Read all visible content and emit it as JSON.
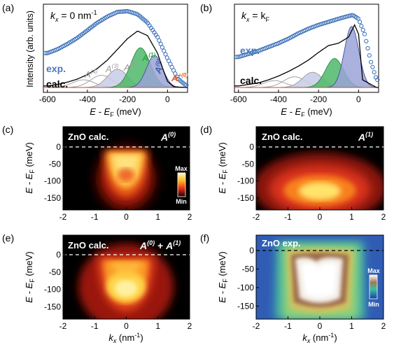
{
  "panels": {
    "a": {
      "label": "(a)",
      "kx_label_prefix": "k",
      "kx_label_sub": "x",
      "kx_label_suffix": " = 0 nm",
      "kx_label_sup": "-1",
      "exp_label": "exp.",
      "calc_label": "calc.",
      "components": [
        {
          "name": "A(4)",
          "base": "A",
          "sup": "(4)"
        },
        {
          "name": "A(3)",
          "base": "A",
          "sup": "(3)"
        },
        {
          "name": "A(2)",
          "base": "A",
          "sup": "(2)"
        },
        {
          "name": "A(1)",
          "base": "A",
          "sup": "(1)"
        },
        {
          "name": "A(0)",
          "base": "A",
          "sup": "(0)"
        },
        {
          "name": "A+(0)",
          "base": "A",
          "sup": "+(0)"
        }
      ]
    },
    "b": {
      "label": "(b)",
      "kx_label_prefix": "k",
      "kx_label_sub": "x",
      "kx_label_mid": " = k",
      "kx_label_sub2": "F",
      "exp_label": "exp.",
      "calc_label": "calc."
    },
    "c": {
      "label": "(c)",
      "title": "ZnO calc.",
      "component": {
        "base": "A",
        "sup": "(0)"
      },
      "colorbar_max": "Max",
      "colorbar_min": "Min"
    },
    "d": {
      "label": "(d)",
      "title": "ZnO calc.",
      "component": {
        "base": "A",
        "sup": "(1)"
      }
    },
    "e": {
      "label": "(e)",
      "title": "ZnO calc.",
      "component": {
        "base": "A",
        "sup": "(0)",
        "plus": " + ",
        "base2": "A",
        "sup2": "(1)"
      }
    },
    "f": {
      "label": "(f)",
      "title": "ZnO exp.",
      "colorbar_max": "Max",
      "colorbar_min": "Min"
    }
  },
  "axes": {
    "spectrum_ylabel": "Intensity (arb. units)",
    "spectrum_xlabel_prefix": "E - E",
    "spectrum_xlabel_sub": "F",
    "spectrum_xlabel_suffix": " (meV)",
    "spectrum_xticks": [
      "-600",
      "-400",
      "-200",
      "0"
    ],
    "map_ylabel_prefix": "E - E",
    "map_ylabel_sub": "F",
    "map_ylabel_suffix": " (meV)",
    "map_yticks": [
      "0",
      "-50",
      "-100",
      "-150"
    ],
    "map_xticks": [
      "-2",
      "-1",
      "0",
      "1",
      "2"
    ],
    "map_xlabel_prefix": "k",
    "map_xlabel_sub": "x",
    "map_xlabel_suffix": " (nm",
    "map_xlabel_sup": "-1",
    "map_xlabel_close": ")"
  },
  "colors": {
    "exp_markers": "#3a6fb8",
    "calc_line": "#000000",
    "A0_fill": "#9aa3d6",
    "A1_fill": "#4fb86a",
    "A_plus_line": "#d24a2a",
    "minor_lines": "#9a9a9a",
    "exp_label": "#4a78c0",
    "A1_label": "#2fa84a",
    "A0_label": "#3d5fb0",
    "A_plus_label": "#e0602a"
  },
  "chart_data": [
    {
      "type": "line",
      "panel": "a",
      "xlabel": "E - EF (meV)",
      "ylabel": "Intensity (arb. units)",
      "xlim": [
        -620,
        100
      ],
      "x_ticks": [
        -600,
        -400,
        -200,
        0
      ],
      "series": [
        {
          "name": "exp.",
          "x": [
            -600,
            -550,
            -500,
            -450,
            -400,
            -350,
            -300,
            -250,
            -200,
            -150,
            -100,
            -50,
            0,
            50,
            90
          ],
          "values": [
            0.45,
            0.5,
            0.57,
            0.65,
            0.75,
            0.85,
            0.93,
            0.99,
            1.0,
            0.96,
            0.85,
            0.66,
            0.38,
            0.12,
            0.03
          ]
        },
        {
          "name": "calc.",
          "x": [
            -600,
            -550,
            -500,
            -450,
            -400,
            -350,
            -300,
            -250,
            -200,
            -150,
            -100,
            -50,
            -20,
            0,
            30,
            90
          ],
          "values": [
            0.02,
            0.04,
            0.07,
            0.11,
            0.17,
            0.25,
            0.36,
            0.5,
            0.64,
            0.74,
            0.68,
            0.45,
            0.22,
            0.08,
            0.01,
            0.0
          ]
        }
      ]
    },
    {
      "type": "line",
      "panel": "b",
      "xlabel": "E - EF (meV)",
      "xlim": [
        -620,
        100
      ],
      "x_ticks": [
        -600,
        -400,
        -200,
        0
      ],
      "series": [
        {
          "name": "exp.",
          "x": [
            -600,
            -550,
            -500,
            -450,
            -400,
            -350,
            -300,
            -250,
            -200,
            -150,
            -100,
            -60,
            -30,
            0,
            30,
            60,
            90
          ],
          "values": [
            0.4,
            0.44,
            0.48,
            0.53,
            0.58,
            0.64,
            0.71,
            0.77,
            0.82,
            0.86,
            0.9,
            0.93,
            0.95,
            0.9,
            0.7,
            0.35,
            0.1
          ]
        },
        {
          "name": "calc.",
          "x": [
            -600,
            -550,
            -500,
            -450,
            -400,
            -350,
            -300,
            -250,
            -200,
            -150,
            -100,
            -50,
            -20,
            0,
            20,
            90
          ],
          "values": [
            0.02,
            0.04,
            0.06,
            0.1,
            0.15,
            0.21,
            0.28,
            0.36,
            0.46,
            0.55,
            0.58,
            0.66,
            0.82,
            0.7,
            0.1,
            0.0
          ]
        }
      ]
    }
  ]
}
